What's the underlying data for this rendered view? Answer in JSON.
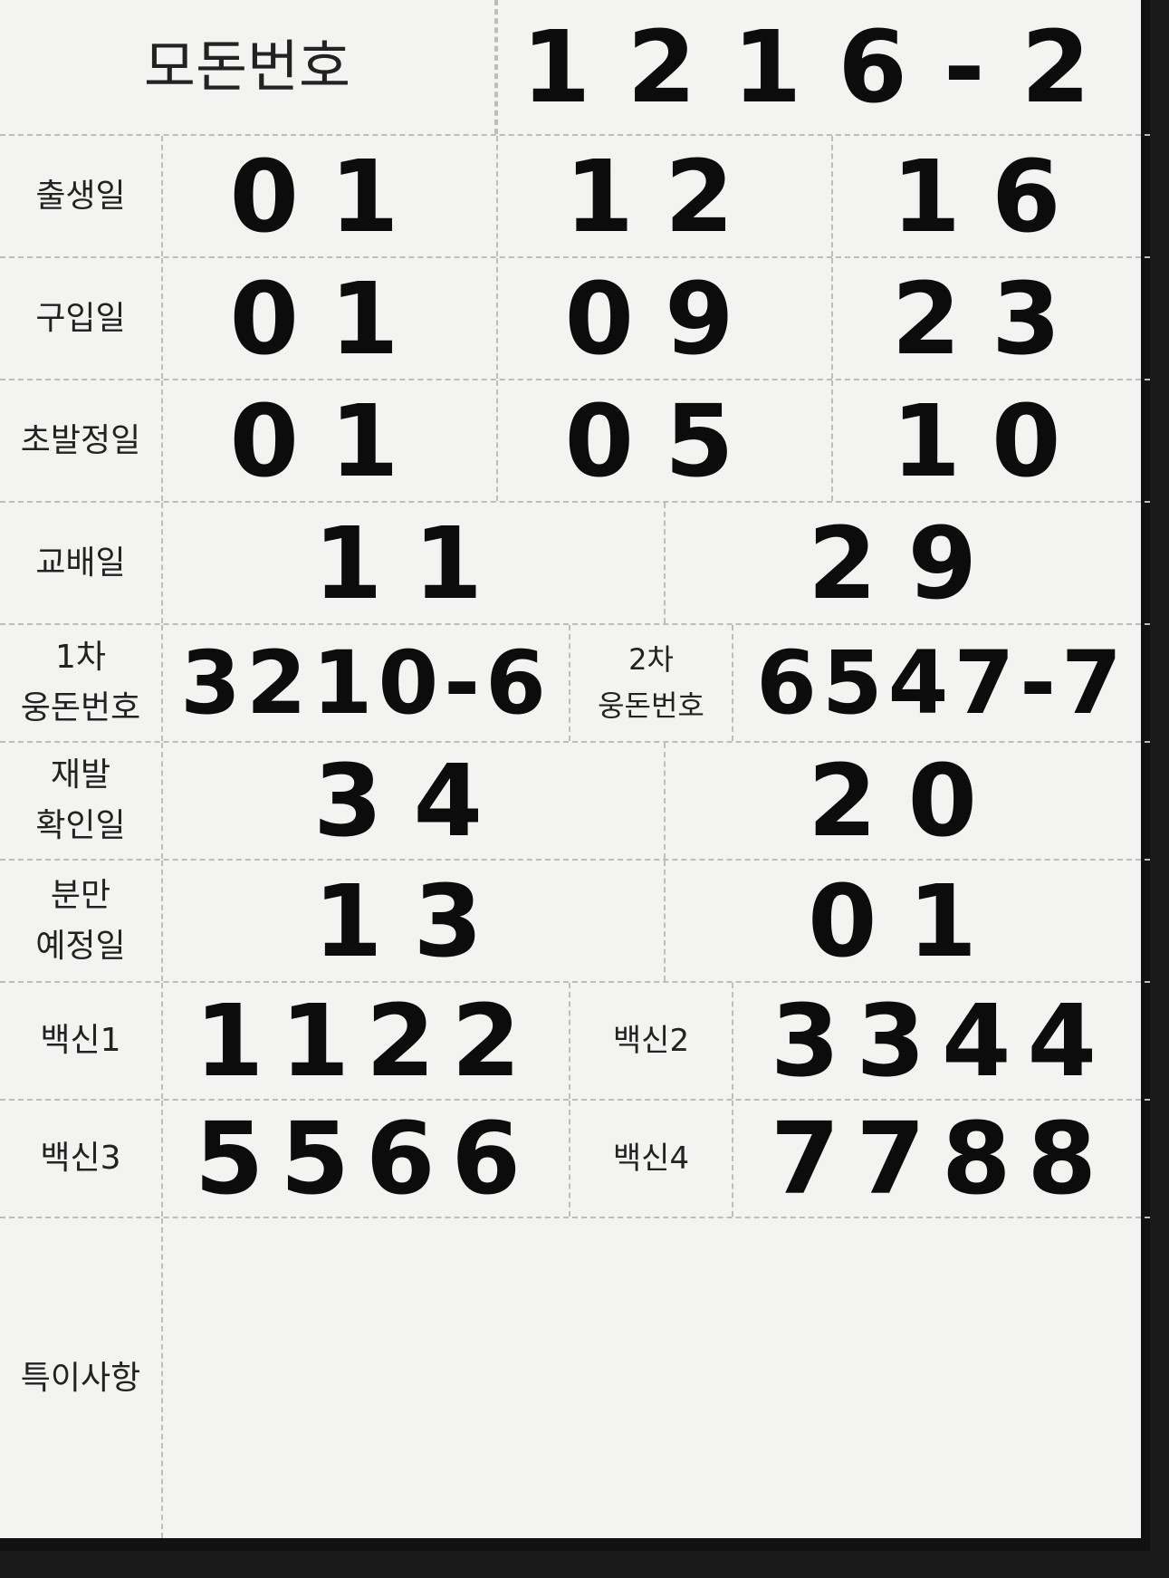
{
  "sow_number": {
    "label": "모돈번호",
    "value": "1216-2"
  },
  "birth_date": {
    "label": "출생일",
    "year": "01",
    "month": "12",
    "day": "16"
  },
  "purchase_date": {
    "label": "구입일",
    "year": "01",
    "month": "09",
    "day": "23"
  },
  "first_estrus_date": {
    "label": "초발정일",
    "year": "01",
    "month": "05",
    "day": "10"
  },
  "mating_date": {
    "label": "교배일",
    "month": "11",
    "day": "29"
  },
  "boar_numbers": {
    "first_label": "1차\n웅돈번호",
    "first_value": "3210-6",
    "second_label": "2차\n웅돈번호",
    "second_value": "6547-7"
  },
  "return_check_date": {
    "label": "재발\n확인일",
    "month": "34",
    "day": "20"
  },
  "expected_farrowing_date": {
    "label": "분만\n예정일",
    "month": "13",
    "day": "01"
  },
  "vaccines": {
    "v1_label": "백신1",
    "v1_value": "1122",
    "v2_label": "백신2",
    "v2_value": "3344",
    "v3_label": "백신3",
    "v3_value": "5566",
    "v4_label": "백신4",
    "v4_value": "7788"
  },
  "remarks": {
    "label": "특이사항",
    "value": ""
  }
}
